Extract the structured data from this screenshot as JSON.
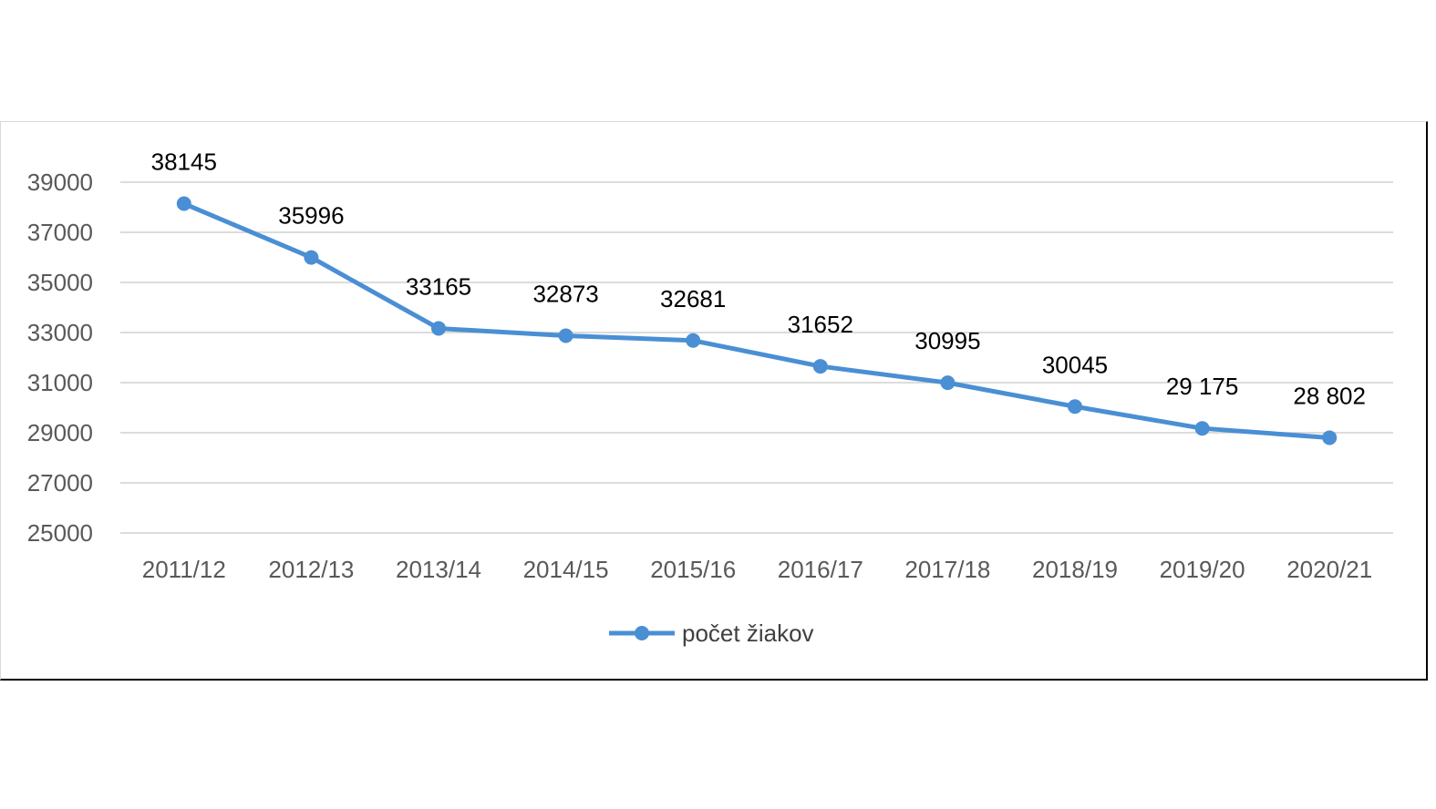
{
  "chart_data": {
    "type": "line",
    "categories": [
      "2011/12",
      "2012/13",
      "2013/14",
      "2014/15",
      "2015/16",
      "2016/17",
      "2017/18",
      "2018/19",
      "2019/20",
      "2020/21"
    ],
    "series": [
      {
        "name": "počet žiakov",
        "values": [
          38145,
          35996,
          33165,
          32873,
          32681,
          31652,
          30995,
          30045,
          29175,
          28802
        ],
        "data_labels": [
          "38145",
          "35996",
          "33165",
          "32873",
          "32681",
          "31652",
          "30995",
          "30045",
          "29 175",
          "28 802"
        ],
        "color": "#4a8fd4"
      }
    ],
    "yticks": [
      25000,
      27000,
      29000,
      31000,
      33000,
      35000,
      37000,
      39000
    ],
    "ylim": [
      25000,
      39000
    ],
    "grid": true,
    "legend_position": "bottom",
    "title": "",
    "xlabel": "",
    "ylabel": ""
  },
  "colors": {
    "series": "#4a8fd4",
    "grid": "#d0d0d0"
  }
}
